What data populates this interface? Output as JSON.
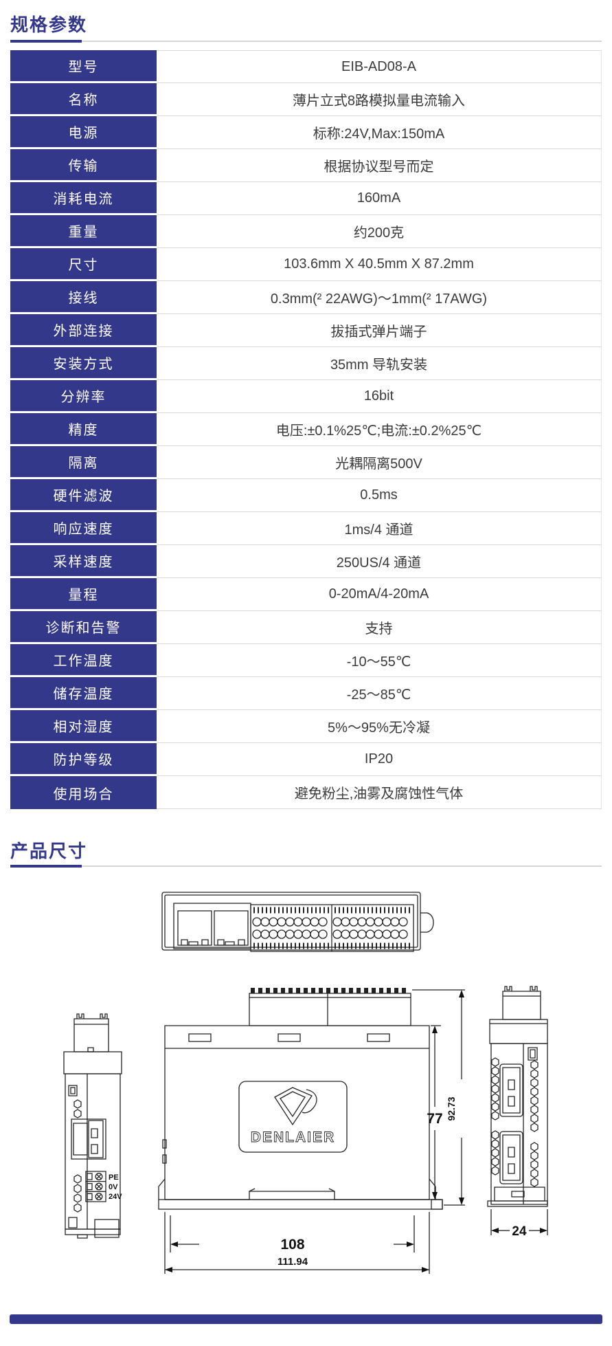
{
  "colors": {
    "primary": "#34388B",
    "label_bg": "#34388B",
    "label_text": "#FFFFFF",
    "value_text": "#3A3A3A",
    "divider_gray": "#D6D6D6",
    "drawing_stroke": "#222222"
  },
  "sections": {
    "specs_title": "规格参数",
    "dims_title": "产品尺寸"
  },
  "spec_table": {
    "rows": [
      {
        "label": "型号",
        "value": "EIB-AD08-A"
      },
      {
        "label": "名称",
        "value": "薄片立式8路模拟量电流输入"
      },
      {
        "label": "电源",
        "value": "标称:24V,Max:150mA"
      },
      {
        "label": "传输",
        "value": "根据协议型号而定"
      },
      {
        "label": "消耗电流",
        "value": "160mA"
      },
      {
        "label": "重量",
        "value": "约200克"
      },
      {
        "label": "尺寸",
        "value": "103.6mm X 40.5mm X 87.2mm"
      },
      {
        "label": "接线",
        "value": "0.3mm(² 22AWG)～1mm(² 17AWG)"
      },
      {
        "label": "外部连接",
        "value": "拔插式弹片端子"
      },
      {
        "label": "安装方式",
        "value": "35mm 导轨安装"
      },
      {
        "label": "分辨率",
        "value": "16bit"
      },
      {
        "label": "精度",
        "value": "电压:±0.1%25℃;电流:±0.2%25℃"
      },
      {
        "label": "隔离",
        "value": "光耦隔离500V"
      },
      {
        "label": "硬件滤波",
        "value": "0.5ms"
      },
      {
        "label": "响应速度",
        "value": "1ms/4 通道"
      },
      {
        "label": "采样速度",
        "value": "250US/4 通道"
      },
      {
        "label": "量程",
        "value": "0-20mA/4-20mA"
      },
      {
        "label": "诊断和告警",
        "value": "支持"
      },
      {
        "label": "工作温度",
        "value": "-10～55℃"
      },
      {
        "label": "储存温度",
        "value": "-25～85℃"
      },
      {
        "label": "相对湿度",
        "value": "5%～95%无冷凝"
      },
      {
        "label": "防护等级",
        "value": "IP20"
      },
      {
        "label": "使用场合",
        "value": "避免粉尘,油雾及腐蚀性气体"
      }
    ]
  },
  "drawings": {
    "logo_text": "DENLAIER",
    "terminal_labels": [
      "PE",
      "0V",
      "24V"
    ],
    "dim_front_width": "108",
    "dim_front_width_outer": "111.94",
    "dim_front_height": "77",
    "dim_front_height_outer": "92.73",
    "dim_side_width": "24"
  }
}
